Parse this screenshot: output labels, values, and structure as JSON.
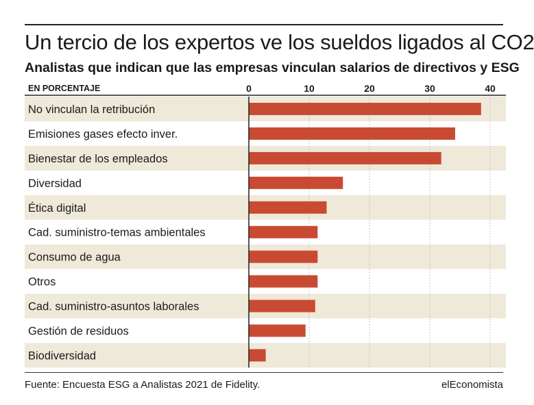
{
  "header": {
    "title": "Un tercio de los expertos ve los sueldos ligados al CO2",
    "subtitle": "Analistas que indican que las empresas vinculan salarios de directivos y ESG"
  },
  "chart_data": {
    "type": "bar",
    "orientation": "horizontal",
    "unit_label": "EN PORCENTAJE",
    "categories": [
      "No vinculan la retribución",
      "Emisiones gases efecto inver.",
      "Bienestar de los empleados",
      "Diversidad",
      "Ética digital",
      "Cad. suministro-temas ambientales",
      "Consumo de agua",
      "Otros",
      "Cad. suministro-asuntos laborales",
      "Gestión de residuos",
      "Biodiversidad"
    ],
    "values": [
      38.5,
      34.2,
      31.9,
      15.6,
      12.9,
      11.4,
      11.4,
      11.4,
      11.0,
      9.4,
      2.8
    ],
    "xlim": [
      0,
      40
    ],
    "xticks": [
      0,
      10,
      20,
      30,
      40
    ],
    "grid": true,
    "colors": {
      "bar": "#c94a33",
      "band": "#efe9d9",
      "grid": "#b5b5b5"
    }
  },
  "footer": {
    "source": "Fuente: Encuesta ESG a Analistas 2021 de Fidelity.",
    "brand": "elEconomista"
  }
}
